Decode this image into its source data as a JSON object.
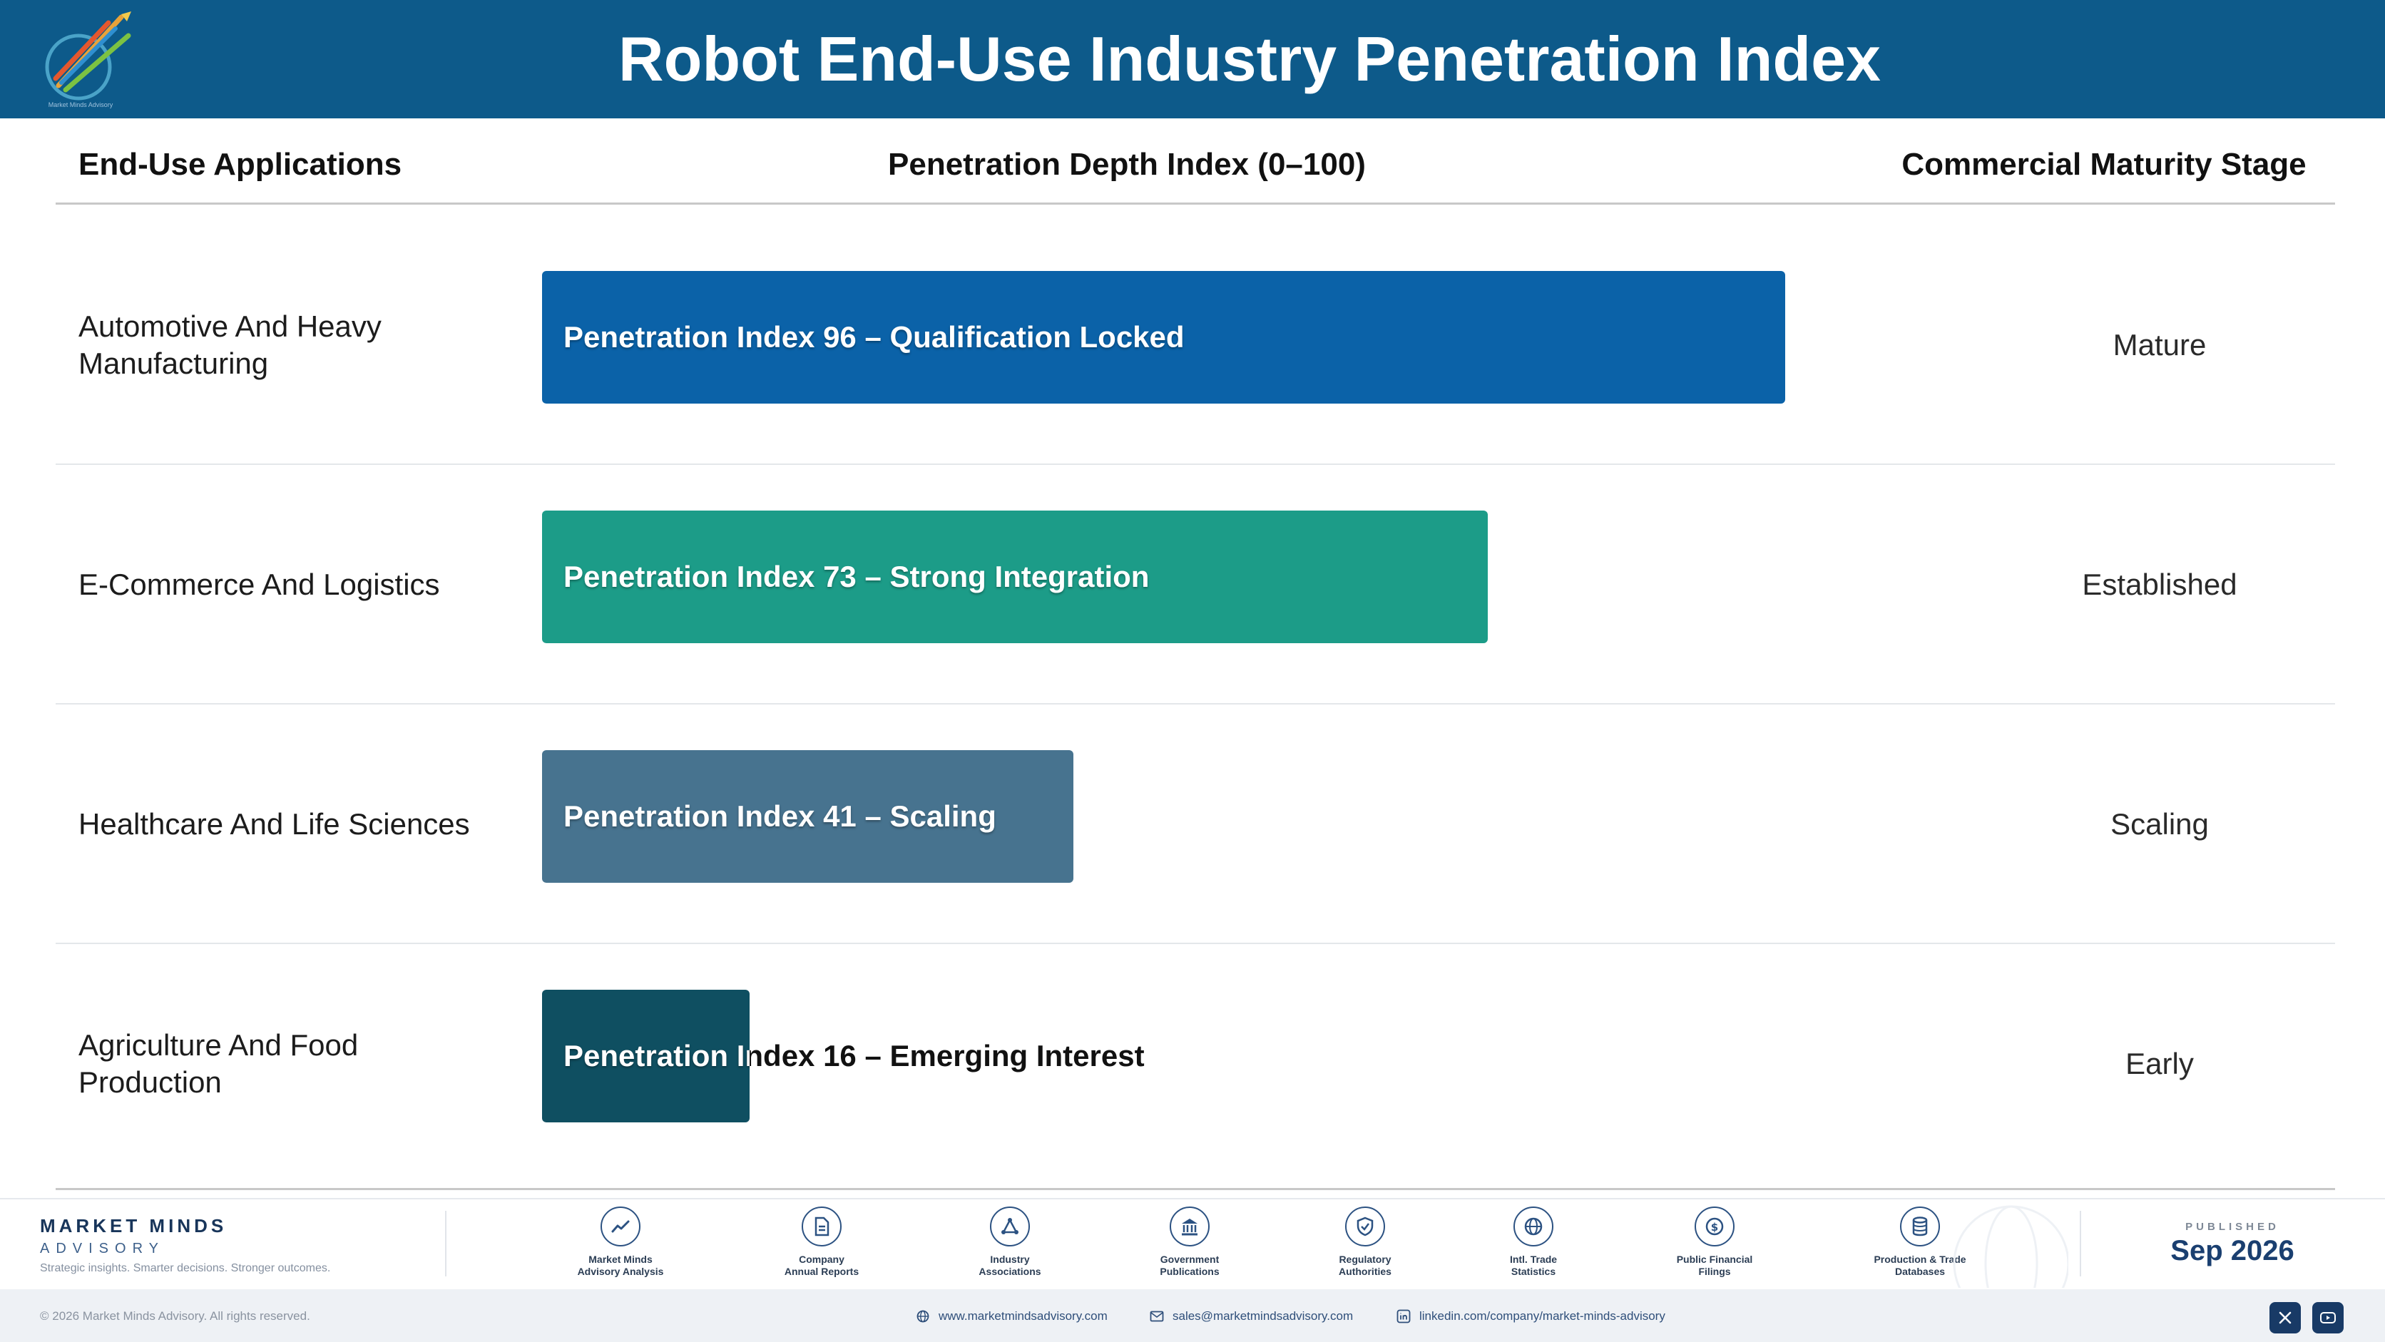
{
  "header": {
    "title": "Robot End-Use Industry Penetration Index",
    "logo_caption": "Market Minds Advisory"
  },
  "columns": {
    "applications": "End-Use Applications",
    "index": "Penetration Depth Index (0–100)",
    "stage": "Commercial Maturity Stage"
  },
  "chart_data": {
    "type": "bar",
    "orientation": "horizontal",
    "title": "Robot End-Use Industry Penetration Index",
    "xlim": [
      0,
      100
    ],
    "grid": false,
    "categories": [
      "Automotive And Heavy Manufacturing",
      "E-Commerce And Logistics",
      "Healthcare And Life Sciences",
      "Agriculture And Food Production"
    ],
    "values": [
      96,
      73,
      41,
      16
    ],
    "rows": [
      {
        "application": "Automotive And Heavy Manufacturing",
        "value": 96,
        "bar_label": "Penetration Index 96 – Qualification Locked",
        "stage": "Mature",
        "color": "#0b62a8"
      },
      {
        "application": "E-Commerce And Logistics",
        "value": 73,
        "bar_label": "Penetration Index 73 – Strong Integration",
        "stage": "Established",
        "color": "#1c9c88"
      },
      {
        "application": "Healthcare And Life Sciences",
        "value": 41,
        "bar_label": "Penetration Index 41 – Scaling",
        "stage": "Scaling",
        "color": "#47738f"
      },
      {
        "application": "Agriculture And Food Production",
        "value": 16,
        "bar_label": "Penetration Index 16 – Emerging Interest",
        "stage": "Early",
        "color": "#0f4f61"
      }
    ]
  },
  "footer": {
    "brand_name": "MARKET MINDS",
    "brand_sub": "ADVISORY",
    "tagline": "Strategic insights. Smarter decisions. Stronger outcomes.",
    "sources": [
      {
        "icon": "trend-line-icon",
        "line1": "Market Minds",
        "line2": "Advisory Analysis"
      },
      {
        "icon": "document-icon",
        "line1": "Company",
        "line2": "Annual Reports"
      },
      {
        "icon": "network-icon",
        "line1": "Industry",
        "line2": "Associations"
      },
      {
        "icon": "government-building-icon",
        "line1": "Government",
        "line2": "Publications"
      },
      {
        "icon": "shield-check-icon",
        "line1": "Regulatory",
        "line2": "Authorities"
      },
      {
        "icon": "globe-icon",
        "line1": "Intl. Trade",
        "line2": "Statistics"
      },
      {
        "icon": "coin-icon",
        "line1": "Public Financial",
        "line2": "Filings"
      },
      {
        "icon": "database-icon",
        "line1": "Production & Trade",
        "line2": "Databases"
      }
    ],
    "published_caption": "PUBLISHED",
    "published_date": "Sep 2026",
    "copyright": "© 2026 Market Minds Advisory. All rights reserved.",
    "website": "www.marketmindsadvisory.com",
    "email": "sales@marketmindsadvisory.com",
    "linkedin": "linkedin.com/company/market-minds-advisory"
  }
}
